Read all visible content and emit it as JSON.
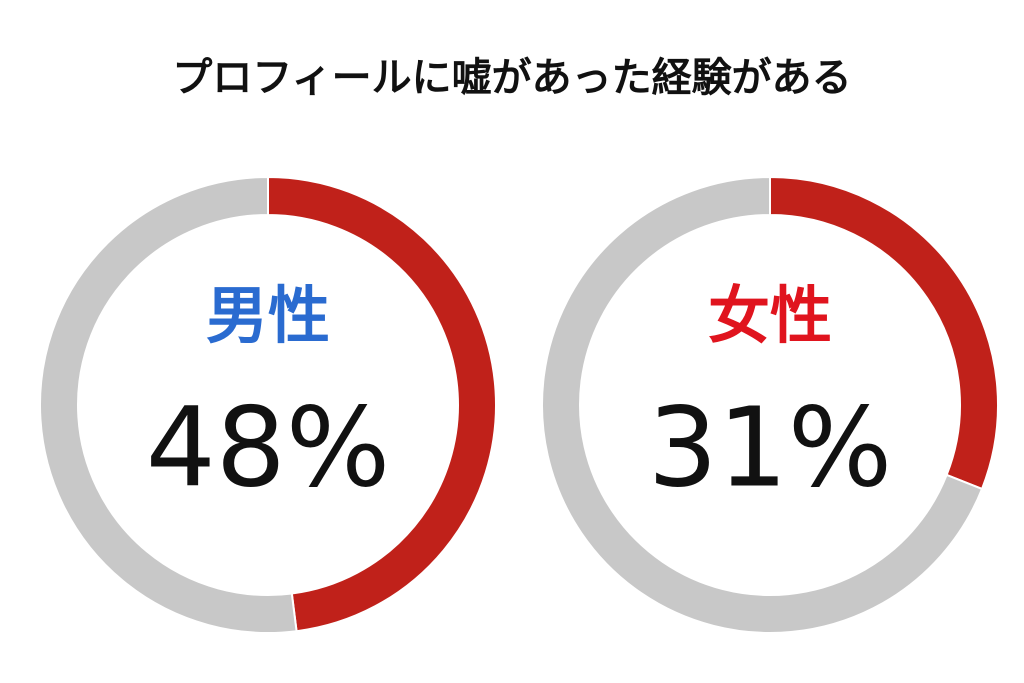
{
  "title": "プロフィールに嘘があった経験がある",
  "chart_data": [
    {
      "type": "donut",
      "title": "男性",
      "title_color": "#2a6bd0",
      "values": [
        48,
        52
      ],
      "value_labels": [
        "48%",
        null
      ],
      "colors": [
        "#c0211a",
        "#c8c8c8"
      ]
    },
    {
      "type": "donut",
      "title": "女性",
      "title_color": "#e0141e",
      "values": [
        31,
        69
      ],
      "value_labels": [
        "31%",
        null
      ],
      "colors": [
        "#c0211a",
        "#c8c8c8"
      ]
    }
  ]
}
